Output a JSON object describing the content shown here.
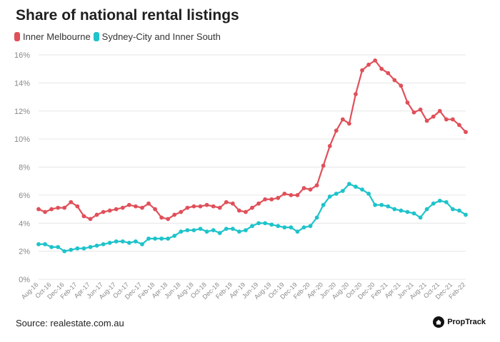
{
  "title": "Share of national rental listings",
  "source": "Source: realestate.com.au",
  "brand": {
    "name": "PropTrack",
    "icon": "proptrack-house-icon"
  },
  "colors": {
    "inner_melbourne": "#e0505a",
    "sydney": "#1fc3ca",
    "grid": "#e6e6e6",
    "axis_text": "#888888"
  },
  "chart_data": {
    "type": "line",
    "title": "Share of national rental listings",
    "xlabel": "",
    "ylabel": "",
    "ylim": [
      0,
      16
    ],
    "yticks": [
      "0%",
      "2%",
      "4%",
      "6%",
      "8%",
      "10%",
      "12%",
      "14%",
      "16%"
    ],
    "grid": true,
    "legend_position": "top-left",
    "x_tick_labels": [
      "Aug-16",
      "Oct-16",
      "Dec-16",
      "Feb-17",
      "Apr-17",
      "Jun-17",
      "Aug-17",
      "Oct-17",
      "Dec-17",
      "Feb-18",
      "Apr-18",
      "Jun-18",
      "Aug-18",
      "Oct-18",
      "Dec-18",
      "Feb-19",
      "Apr-19",
      "Jun-19",
      "Aug-19",
      "Oct-19",
      "Dec-19",
      "Feb-20",
      "Apr-20",
      "Jun-20",
      "Aug-20",
      "Oct-20",
      "Dec-20",
      "Feb-21",
      "Apr-21",
      "Jun-21",
      "Aug-21",
      "Oct-21",
      "Dec-21",
      "Feb-22"
    ],
    "series": [
      {
        "name": "Inner Melbourne",
        "color": "#e0505a",
        "values": [
          5.0,
          4.8,
          5.0,
          5.1,
          5.1,
          5.5,
          5.2,
          4.5,
          4.3,
          4.6,
          4.8,
          4.9,
          5.0,
          5.1,
          5.3,
          5.2,
          5.1,
          5.4,
          5.0,
          4.4,
          4.3,
          4.6,
          4.8,
          5.1,
          5.2,
          5.2,
          5.3,
          5.2,
          5.1,
          5.5,
          5.4,
          4.9,
          4.8,
          5.1,
          5.4,
          5.7,
          5.7,
          5.8,
          6.1,
          6.0,
          6.0,
          6.5,
          6.4,
          6.7,
          8.1,
          9.5,
          10.6,
          11.4,
          11.1,
          13.2,
          14.9,
          15.3,
          15.6,
          15.0,
          14.7,
          14.2,
          13.8,
          12.6,
          11.9,
          12.1,
          11.3,
          11.6,
          12.0,
          11.4,
          11.4,
          11.0,
          10.5
        ]
      },
      {
        "name": "Sydney-City and Inner South",
        "color": "#1fc3ca",
        "values": [
          2.5,
          2.5,
          2.3,
          2.3,
          2.0,
          2.1,
          2.2,
          2.2,
          2.3,
          2.4,
          2.5,
          2.6,
          2.7,
          2.7,
          2.6,
          2.7,
          2.5,
          2.9,
          2.9,
          2.9,
          2.9,
          3.1,
          3.4,
          3.5,
          3.5,
          3.6,
          3.4,
          3.5,
          3.3,
          3.6,
          3.6,
          3.4,
          3.5,
          3.8,
          4.0,
          4.0,
          3.9,
          3.8,
          3.7,
          3.7,
          3.4,
          3.7,
          3.8,
          4.4,
          5.3,
          5.9,
          6.1,
          6.3,
          6.8,
          6.6,
          6.4,
          6.1,
          5.3,
          5.3,
          5.2,
          5.0,
          4.9,
          4.8,
          4.7,
          4.4,
          5.0,
          5.4,
          5.6,
          5.5,
          5.0,
          4.9,
          4.6
        ]
      }
    ]
  }
}
